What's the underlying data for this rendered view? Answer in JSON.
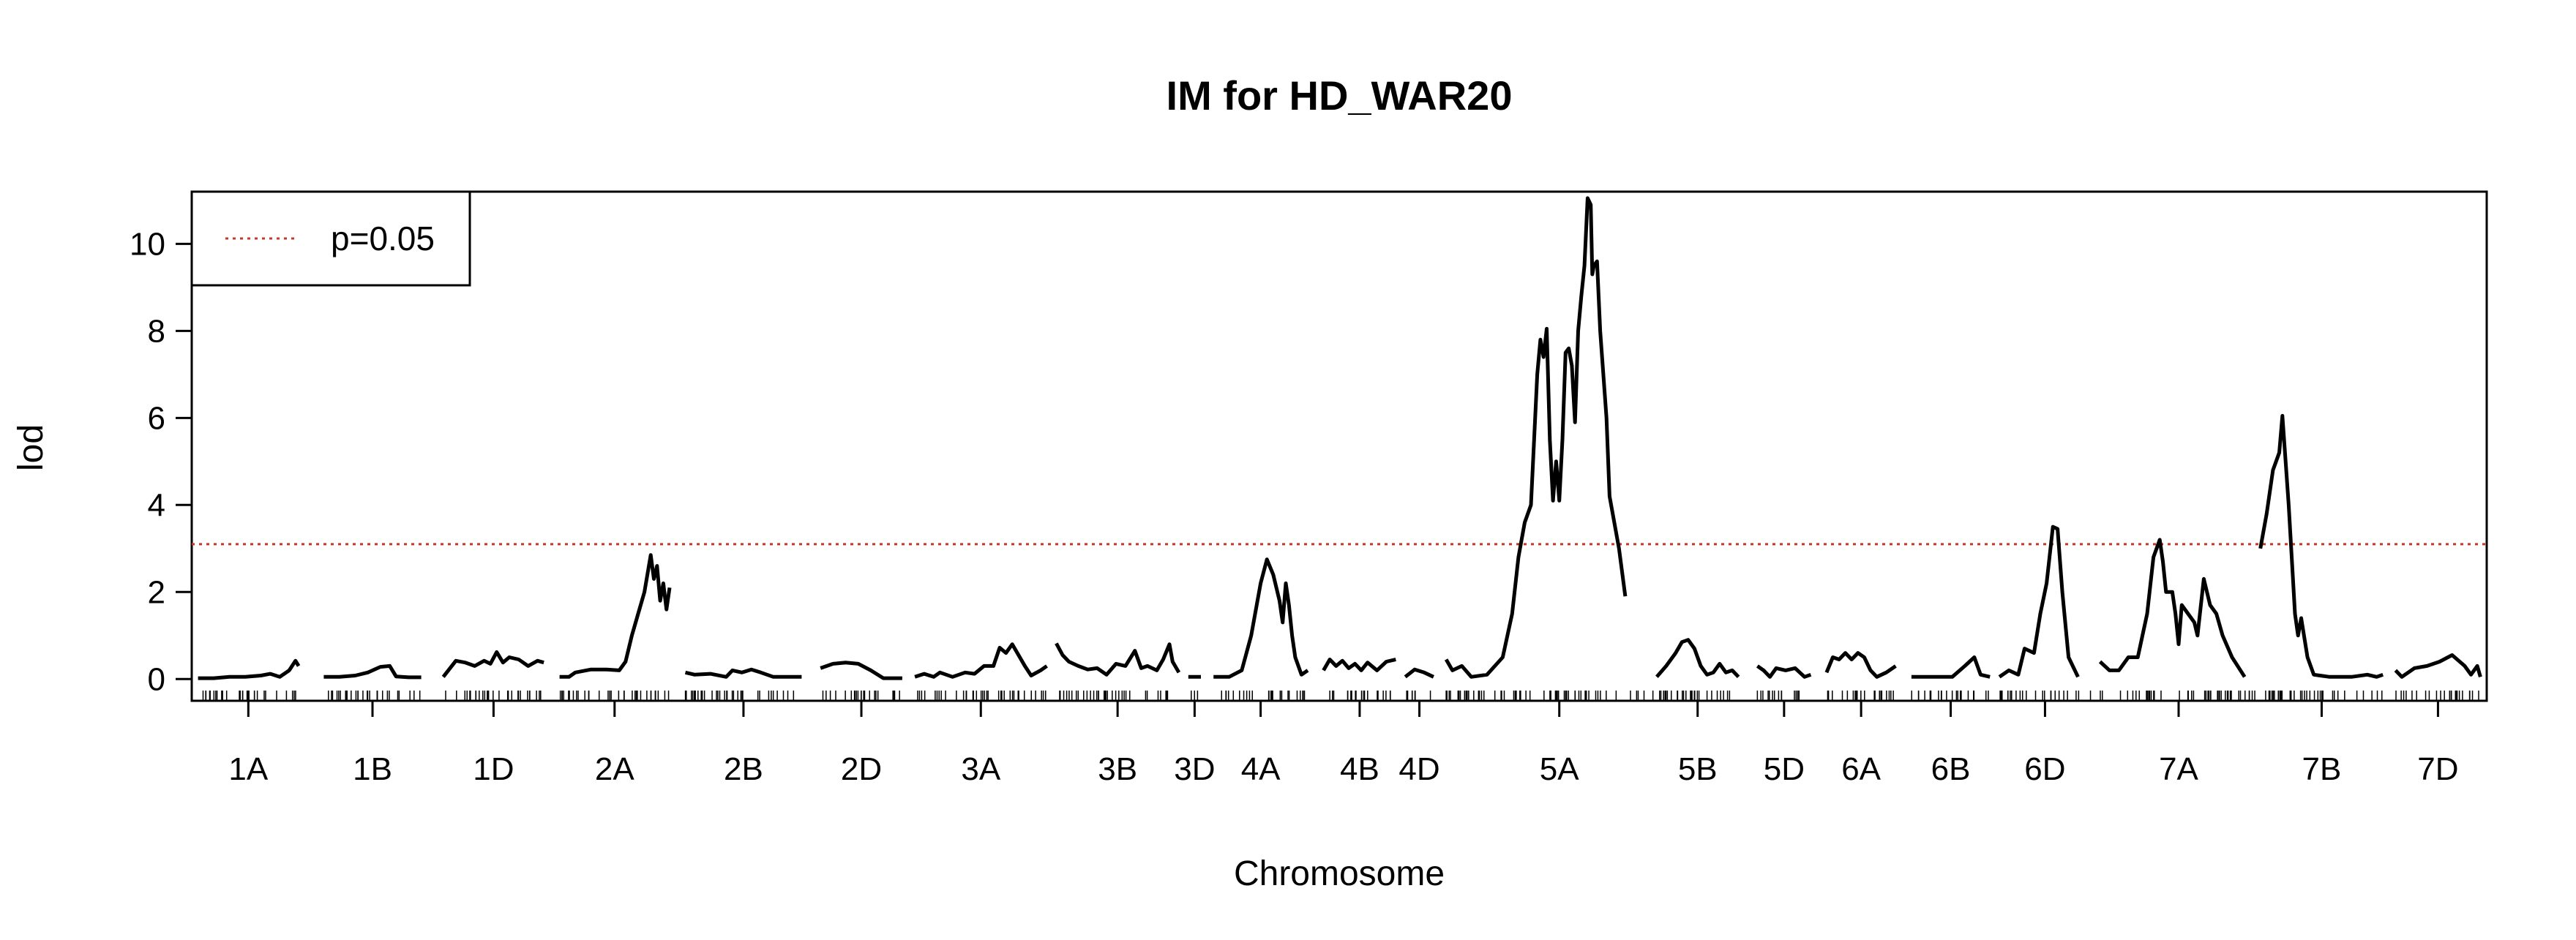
{
  "chart_data": {
    "type": "line",
    "title": "IM for HD_WAR20",
    "xlabel": "Chromosome",
    "ylabel": "lod",
    "ylim": [
      -0.5,
      11.2
    ],
    "yticks": [
      0,
      2,
      4,
      6,
      8,
      10
    ],
    "threshold": {
      "label": "p=0.05",
      "value": 3.1,
      "color": "#c0392b",
      "style": "dotted"
    },
    "legend": {
      "position": "top-left",
      "entries": [
        "p=0.05"
      ]
    },
    "grid": false,
    "line_color": "#000000",
    "chromosomes": [
      {
        "name": "1A",
        "range": [
          0.0,
          3.2
        ],
        "points": [
          [
            0,
            0.02
          ],
          [
            0.5,
            0.02
          ],
          [
            1,
            0.05
          ],
          [
            1.5,
            0.05
          ],
          [
            2,
            0.08
          ],
          [
            2.3,
            0.12
          ],
          [
            2.6,
            0.05
          ],
          [
            2.9,
            0.2
          ],
          [
            3.1,
            0.42
          ],
          [
            3.2,
            0.3
          ]
        ]
      },
      {
        "name": "1B",
        "range": [
          4.0,
          7.1
        ],
        "points": [
          [
            4,
            0.05
          ],
          [
            4.5,
            0.05
          ],
          [
            5,
            0.08
          ],
          [
            5.4,
            0.15
          ],
          [
            5.8,
            0.28
          ],
          [
            6.1,
            0.3
          ],
          [
            6.3,
            0.06
          ],
          [
            6.7,
            0.04
          ],
          [
            7.1,
            0.04
          ]
        ]
      },
      {
        "name": "1D",
        "range": [
          7.8,
          11.0
        ],
        "points": [
          [
            7.8,
            0.05
          ],
          [
            8.2,
            0.42
          ],
          [
            8.5,
            0.38
          ],
          [
            8.8,
            0.3
          ],
          [
            9.1,
            0.42
          ],
          [
            9.3,
            0.35
          ],
          [
            9.5,
            0.62
          ],
          [
            9.7,
            0.38
          ],
          [
            9.9,
            0.5
          ],
          [
            10.2,
            0.45
          ],
          [
            10.5,
            0.3
          ],
          [
            10.8,
            0.42
          ],
          [
            11,
            0.38
          ]
        ]
      },
      {
        "name": "2A",
        "range": [
          11.5,
          15.0
        ],
        "points": [
          [
            11.5,
            0.05
          ],
          [
            11.8,
            0.05
          ],
          [
            12,
            0.15
          ],
          [
            12.5,
            0.22
          ],
          [
            13,
            0.22
          ],
          [
            13.4,
            0.2
          ],
          [
            13.6,
            0.4
          ],
          [
            13.8,
            1.0
          ],
          [
            14,
            1.5
          ],
          [
            14.2,
            2.0
          ],
          [
            14.4,
            2.85
          ],
          [
            14.5,
            2.3
          ],
          [
            14.6,
            2.6
          ],
          [
            14.7,
            1.8
          ],
          [
            14.8,
            2.2
          ],
          [
            14.9,
            1.6
          ],
          [
            15,
            2.1
          ]
        ]
      },
      {
        "name": "2B",
        "range": [
          15.5,
          19.2
        ],
        "points": [
          [
            15.5,
            0.15
          ],
          [
            15.8,
            0.1
          ],
          [
            16.3,
            0.12
          ],
          [
            16.8,
            0.05
          ],
          [
            17,
            0.2
          ],
          [
            17.3,
            0.15
          ],
          [
            17.6,
            0.22
          ],
          [
            17.9,
            0.15
          ],
          [
            18.3,
            0.05
          ],
          [
            18.8,
            0.05
          ],
          [
            19.2,
            0.05
          ]
        ]
      },
      {
        "name": "2D",
        "range": [
          19.8,
          22.4
        ],
        "points": [
          [
            19.8,
            0.25
          ],
          [
            20.2,
            0.35
          ],
          [
            20.6,
            0.38
          ],
          [
            21,
            0.35
          ],
          [
            21.4,
            0.2
          ],
          [
            21.8,
            0.02
          ],
          [
            22.4,
            0.02
          ]
        ]
      },
      {
        "name": "3A",
        "range": [
          22.8,
          27.0
        ],
        "points": [
          [
            22.8,
            0.05
          ],
          [
            23.1,
            0.12
          ],
          [
            23.4,
            0.05
          ],
          [
            23.6,
            0.15
          ],
          [
            24,
            0.05
          ],
          [
            24.4,
            0.15
          ],
          [
            24.7,
            0.12
          ],
          [
            25,
            0.3
          ],
          [
            25.3,
            0.3
          ],
          [
            25.5,
            0.72
          ],
          [
            25.7,
            0.6
          ],
          [
            25.9,
            0.8
          ],
          [
            26.1,
            0.55
          ],
          [
            26.3,
            0.3
          ],
          [
            26.5,
            0.08
          ],
          [
            26.8,
            0.2
          ],
          [
            27,
            0.3
          ]
        ]
      },
      {
        "name": "3B",
        "range": [
          27.3,
          31.2
        ],
        "points": [
          [
            27.3,
            0.82
          ],
          [
            27.5,
            0.55
          ],
          [
            27.7,
            0.4
          ],
          [
            28,
            0.3
          ],
          [
            28.3,
            0.22
          ],
          [
            28.6,
            0.25
          ],
          [
            28.9,
            0.1
          ],
          [
            29.2,
            0.35
          ],
          [
            29.5,
            0.3
          ],
          [
            29.8,
            0.65
          ],
          [
            30,
            0.25
          ],
          [
            30.2,
            0.3
          ],
          [
            30.5,
            0.2
          ],
          [
            30.7,
            0.45
          ],
          [
            30.9,
            0.8
          ],
          [
            31,
            0.4
          ],
          [
            31.2,
            0.15
          ]
        ]
      },
      {
        "name": "3D",
        "range": [
          31.5,
          31.9
        ],
        "points": [
          [
            31.5,
            0.05
          ],
          [
            31.9,
            0.05
          ]
        ]
      },
      {
        "name": "4A",
        "range": [
          32.3,
          35.3
        ],
        "points": [
          [
            32.3,
            0.05
          ],
          [
            32.8,
            0.05
          ],
          [
            33.2,
            0.2
          ],
          [
            33.5,
            1.0
          ],
          [
            33.8,
            2.2
          ],
          [
            34,
            2.75
          ],
          [
            34.2,
            2.4
          ],
          [
            34.4,
            1.8
          ],
          [
            34.5,
            1.3
          ],
          [
            34.6,
            2.2
          ],
          [
            34.7,
            1.7
          ],
          [
            34.8,
            1.0
          ],
          [
            34.9,
            0.5
          ],
          [
            35.1,
            0.1
          ],
          [
            35.3,
            0.2
          ]
        ]
      },
      {
        "name": "4B",
        "range": [
          35.8,
          38.1
        ],
        "points": [
          [
            35.8,
            0.2
          ],
          [
            36,
            0.45
          ],
          [
            36.2,
            0.3
          ],
          [
            36.4,
            0.42
          ],
          [
            36.6,
            0.25
          ],
          [
            36.8,
            0.35
          ],
          [
            37,
            0.2
          ],
          [
            37.2,
            0.38
          ],
          [
            37.5,
            0.2
          ],
          [
            37.8,
            0.4
          ],
          [
            38.1,
            0.45
          ]
        ]
      },
      {
        "name": "4D",
        "range": [
          38.4,
          39.3
        ],
        "points": [
          [
            38.4,
            0.05
          ],
          [
            38.7,
            0.22
          ],
          [
            39,
            0.15
          ],
          [
            39.3,
            0.05
          ]
        ]
      },
      {
        "name": "5A",
        "range": [
          39.7,
          46.9
        ],
        "points": [
          [
            39.7,
            0.45
          ],
          [
            39.9,
            0.2
          ],
          [
            40.2,
            0.3
          ],
          [
            40.5,
            0.05
          ],
          [
            41,
            0.1
          ],
          [
            41.5,
            0.5
          ],
          [
            41.8,
            1.5
          ],
          [
            42,
            2.8
          ],
          [
            42.2,
            3.6
          ],
          [
            42.4,
            4.0
          ],
          [
            42.5,
            5.5
          ],
          [
            42.6,
            7.0
          ],
          [
            42.7,
            7.8
          ],
          [
            42.8,
            7.4
          ],
          [
            42.9,
            8.05
          ],
          [
            43,
            5.5
          ],
          [
            43.1,
            4.1
          ],
          [
            43.2,
            5.0
          ],
          [
            43.3,
            4.1
          ],
          [
            43.4,
            5.5
          ],
          [
            43.5,
            7.5
          ],
          [
            43.6,
            7.6
          ],
          [
            43.7,
            7.2
          ],
          [
            43.8,
            5.9
          ],
          [
            43.9,
            8.0
          ],
          [
            44,
            8.8
          ],
          [
            44.1,
            9.5
          ],
          [
            44.2,
            11.05
          ],
          [
            44.3,
            10.9
          ],
          [
            44.35,
            9.3
          ],
          [
            44.4,
            9.5
          ],
          [
            44.5,
            9.6
          ],
          [
            44.6,
            8.0
          ],
          [
            44.7,
            7.0
          ],
          [
            44.8,
            6.0
          ],
          [
            44.9,
            4.2
          ],
          [
            45,
            3.8
          ],
          [
            45.2,
            3.0
          ],
          [
            45.4,
            1.9
          ]
        ]
      },
      {
        "name": "5B",
        "range": [
          46.4,
          49.0
        ],
        "points": [
          [
            46.4,
            0.05
          ],
          [
            46.7,
            0.3
          ],
          [
            47,
            0.6
          ],
          [
            47.2,
            0.85
          ],
          [
            47.4,
            0.9
          ],
          [
            47.6,
            0.7
          ],
          [
            47.8,
            0.3
          ],
          [
            48,
            0.1
          ],
          [
            48.2,
            0.15
          ],
          [
            48.4,
            0.35
          ],
          [
            48.6,
            0.15
          ],
          [
            48.8,
            0.2
          ],
          [
            49,
            0.05
          ]
        ]
      },
      {
        "name": "5D",
        "range": [
          49.6,
          51.3
        ],
        "points": [
          [
            49.6,
            0.3
          ],
          [
            49.8,
            0.2
          ],
          [
            50,
            0.05
          ],
          [
            50.2,
            0.25
          ],
          [
            50.5,
            0.2
          ],
          [
            50.8,
            0.25
          ],
          [
            51.1,
            0.05
          ],
          [
            51.3,
            0.1
          ]
        ]
      },
      {
        "name": "6A",
        "range": [
          51.8,
          54.0
        ],
        "points": [
          [
            51.8,
            0.15
          ],
          [
            52,
            0.5
          ],
          [
            52.2,
            0.45
          ],
          [
            52.4,
            0.6
          ],
          [
            52.6,
            0.45
          ],
          [
            52.8,
            0.6
          ],
          [
            53,
            0.5
          ],
          [
            53.2,
            0.2
          ],
          [
            53.4,
            0.05
          ],
          [
            53.7,
            0.15
          ],
          [
            54,
            0.3
          ]
        ]
      },
      {
        "name": "6B",
        "range": [
          54.5,
          57.0
        ],
        "points": [
          [
            54.5,
            0.05
          ],
          [
            55,
            0.05
          ],
          [
            55.5,
            0.05
          ],
          [
            55.8,
            0.05
          ],
          [
            56.2,
            0.3
          ],
          [
            56.5,
            0.5
          ],
          [
            56.7,
            0.1
          ],
          [
            57,
            0.05
          ]
        ]
      },
      {
        "name": "6D",
        "range": [
          57.3,
          60.2
        ],
        "points": [
          [
            57.3,
            0.05
          ],
          [
            57.6,
            0.2
          ],
          [
            57.9,
            0.1
          ],
          [
            58.1,
            0.7
          ],
          [
            58.4,
            0.6
          ],
          [
            58.6,
            1.5
          ],
          [
            58.8,
            2.2
          ],
          [
            59,
            3.5
          ],
          [
            59.15,
            3.45
          ],
          [
            59.3,
            2.0
          ],
          [
            59.5,
            0.5
          ],
          [
            59.8,
            0.05
          ]
        ]
      },
      {
        "name": "7A",
        "range": [
          60.5,
          65.5
        ],
        "points": [
          [
            60.5,
            0.4
          ],
          [
            60.8,
            0.2
          ],
          [
            61.1,
            0.2
          ],
          [
            61.4,
            0.5
          ],
          [
            61.7,
            0.5
          ],
          [
            62,
            1.5
          ],
          [
            62.2,
            2.8
          ],
          [
            62.4,
            3.2
          ],
          [
            62.5,
            2.7
          ],
          [
            62.6,
            2.0
          ],
          [
            62.8,
            2.0
          ],
          [
            62.9,
            1.5
          ],
          [
            63,
            0.8
          ],
          [
            63.1,
            1.7
          ],
          [
            63.3,
            1.5
          ],
          [
            63.5,
            1.3
          ],
          [
            63.6,
            1.0
          ],
          [
            63.8,
            2.3
          ],
          [
            64,
            1.7
          ],
          [
            64.2,
            1.5
          ],
          [
            64.4,
            1.0
          ],
          [
            64.7,
            0.5
          ],
          [
            65.1,
            0.05
          ]
        ]
      },
      {
        "name": "7B",
        "range": [
          65.6,
          69.5
        ],
        "points": [
          [
            65.6,
            3.0
          ],
          [
            65.8,
            3.8
          ],
          [
            66,
            4.8
          ],
          [
            66.2,
            5.2
          ],
          [
            66.3,
            6.05
          ],
          [
            66.5,
            4.0
          ],
          [
            66.7,
            1.5
          ],
          [
            66.8,
            1.0
          ],
          [
            66.9,
            1.4
          ],
          [
            67.1,
            0.5
          ],
          [
            67.3,
            0.1
          ],
          [
            67.8,
            0.05
          ],
          [
            68.5,
            0.05
          ],
          [
            69,
            0.1
          ],
          [
            69.3,
            0.05
          ],
          [
            69.5,
            0.1
          ]
        ]
      },
      {
        "name": "7D",
        "range": [
          69.9,
          72.6
        ],
        "points": [
          [
            69.9,
            0.2
          ],
          [
            70.1,
            0.05
          ],
          [
            70.5,
            0.25
          ],
          [
            70.9,
            0.3
          ],
          [
            71.3,
            0.4
          ],
          [
            71.7,
            0.55
          ],
          [
            72.1,
            0.3
          ],
          [
            72.3,
            0.1
          ],
          [
            72.5,
            0.3
          ],
          [
            72.6,
            0.05
          ]
        ]
      }
    ],
    "xlim": [
      -0.2,
      72.8
    ],
    "xtick_labels": [
      "1A",
      "1B",
      "1D",
      "2A",
      "2B",
      "2D",
      "3A",
      "3B",
      "3D",
      "4A",
      "4B",
      "4D",
      "5A",
      "5B",
      "5D",
      "6A",
      "6B",
      "6D",
      "7A",
      "7B",
      "7D"
    ]
  }
}
